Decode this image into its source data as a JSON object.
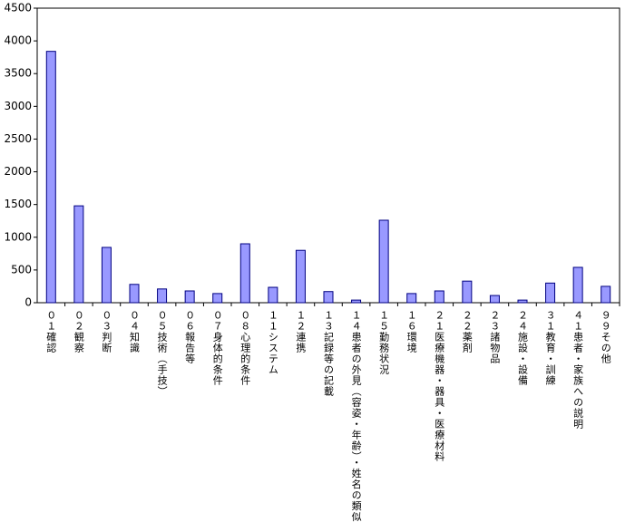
{
  "chart_data": {
    "type": "bar",
    "categories": [
      "０１確認",
      "０２観察",
      "０３判断",
      "０４知識",
      "０５技術（手技）",
      "０６報告等",
      "０７身体的条件",
      "０８心理的条件",
      "１１システム",
      "１２連携",
      "１３記録等の記載",
      "１４患者の外見（容姿・年齢）・姓名の類似",
      "１５勤務状況",
      "１６環境",
      "２１医療機器・器具・医療材料",
      "２２薬剤",
      "２３諸物品",
      "２４施設・設備",
      "３１教育・訓練",
      "４１患者・家族への説明",
      "９９その他"
    ],
    "values": [
      3840,
      1480,
      845,
      280,
      210,
      180,
      140,
      900,
      235,
      800,
      170,
      40,
      1260,
      140,
      180,
      330,
      110,
      40,
      300,
      540,
      250
    ],
    "color": "#9999ff",
    "ylim": [
      0,
      4500
    ],
    "yticks": [
      0,
      500,
      1000,
      1500,
      2000,
      2500,
      3000,
      3500,
      4000,
      4500
    ]
  }
}
